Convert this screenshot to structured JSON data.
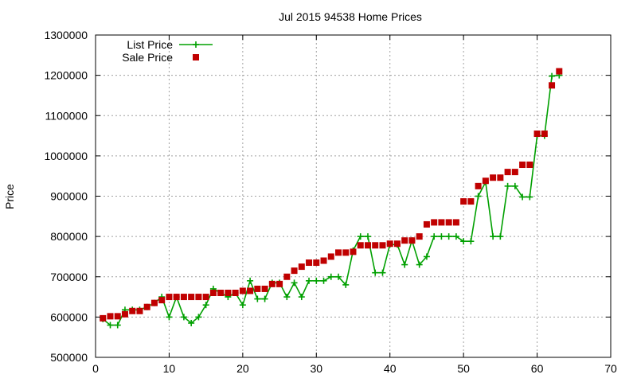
{
  "chart_data": {
    "type": "line",
    "title": "Jul 2015 94538 Home Prices",
    "xlabel": "",
    "ylabel": "Price",
    "xlim": [
      0,
      70
    ],
    "ylim": [
      500000,
      1300000
    ],
    "x_ticks": [
      0,
      10,
      20,
      30,
      40,
      50,
      60,
      70
    ],
    "y_ticks": [
      500000,
      600000,
      700000,
      800000,
      900000,
      1000000,
      1100000,
      1200000,
      1300000
    ],
    "grid": true,
    "legend_position": "top-left",
    "series": [
      {
        "name": "List Price",
        "style": "line-plus",
        "color": "#00a000",
        "points": [
          [
            1,
            595000
          ],
          [
            2,
            580000
          ],
          [
            3,
            580000
          ],
          [
            4,
            618000
          ],
          [
            5,
            618000
          ],
          [
            6,
            618000
          ],
          [
            7,
            625000
          ],
          [
            8,
            635000
          ],
          [
            9,
            650000
          ],
          [
            10,
            600000
          ],
          [
            11,
            650000
          ],
          [
            12,
            600000
          ],
          [
            13,
            585000
          ],
          [
            14,
            600000
          ],
          [
            15,
            630000
          ],
          [
            16,
            670000
          ],
          [
            17,
            660000
          ],
          [
            18,
            650000
          ],
          [
            19,
            660000
          ],
          [
            20,
            630000
          ],
          [
            21,
            690000
          ],
          [
            22,
            645000
          ],
          [
            23,
            645000
          ],
          [
            24,
            685000
          ],
          [
            25,
            685000
          ],
          [
            26,
            650000
          ],
          [
            27,
            685000
          ],
          [
            28,
            650000
          ],
          [
            29,
            690000
          ],
          [
            30,
            690000
          ],
          [
            31,
            690000
          ],
          [
            32,
            700000
          ],
          [
            33,
            700000
          ],
          [
            34,
            680000
          ],
          [
            35,
            765000
          ],
          [
            36,
            800000
          ],
          [
            37,
            800000
          ],
          [
            38,
            710000
          ],
          [
            39,
            710000
          ],
          [
            40,
            780000
          ],
          [
            41,
            780000
          ],
          [
            42,
            730000
          ],
          [
            43,
            790000
          ],
          [
            44,
            730000
          ],
          [
            45,
            750000
          ],
          [
            46,
            800000
          ],
          [
            47,
            800000
          ],
          [
            48,
            800000
          ],
          [
            49,
            800000
          ],
          [
            50,
            788000
          ],
          [
            51,
            788000
          ],
          [
            52,
            900000
          ],
          [
            53,
            935000
          ],
          [
            54,
            800000
          ],
          [
            55,
            800000
          ],
          [
            56,
            925000
          ],
          [
            57,
            925000
          ],
          [
            58,
            898000
          ],
          [
            59,
            898000
          ],
          [
            60,
            1050000
          ],
          [
            61,
            1050000
          ],
          [
            62,
            1198000
          ],
          [
            63,
            1200000
          ]
        ]
      },
      {
        "name": "Sale Price",
        "style": "square",
        "color": "#c00000",
        "points": [
          [
            1,
            597000
          ],
          [
            2,
            602000
          ],
          [
            3,
            602000
          ],
          [
            4,
            607000
          ],
          [
            5,
            615000
          ],
          [
            6,
            615000
          ],
          [
            7,
            625000
          ],
          [
            8,
            635000
          ],
          [
            9,
            642000
          ],
          [
            10,
            650000
          ],
          [
            11,
            650000
          ],
          [
            12,
            650000
          ],
          [
            13,
            650000
          ],
          [
            14,
            650000
          ],
          [
            15,
            650000
          ],
          [
            16,
            660000
          ],
          [
            17,
            660000
          ],
          [
            18,
            660000
          ],
          [
            19,
            660000
          ],
          [
            20,
            665000
          ],
          [
            21,
            665000
          ],
          [
            22,
            670000
          ],
          [
            23,
            670000
          ],
          [
            24,
            682000
          ],
          [
            25,
            682000
          ],
          [
            26,
            700000
          ],
          [
            27,
            715000
          ],
          [
            28,
            725000
          ],
          [
            29,
            735000
          ],
          [
            30,
            735000
          ],
          [
            31,
            740000
          ],
          [
            32,
            750000
          ],
          [
            33,
            760000
          ],
          [
            34,
            760000
          ],
          [
            35,
            762000
          ],
          [
            36,
            778000
          ],
          [
            37,
            778000
          ],
          [
            38,
            778000
          ],
          [
            39,
            778000
          ],
          [
            40,
            782000
          ],
          [
            41,
            782000
          ],
          [
            42,
            790000
          ],
          [
            43,
            790000
          ],
          [
            44,
            800000
          ],
          [
            45,
            830000
          ],
          [
            46,
            835000
          ],
          [
            47,
            835000
          ],
          [
            48,
            835000
          ],
          [
            49,
            835000
          ],
          [
            50,
            887000
          ],
          [
            51,
            887000
          ],
          [
            52,
            925000
          ],
          [
            53,
            938000
          ],
          [
            54,
            946000
          ],
          [
            55,
            946000
          ],
          [
            56,
            960000
          ],
          [
            57,
            960000
          ],
          [
            58,
            978000
          ],
          [
            59,
            978000
          ],
          [
            60,
            1055000
          ],
          [
            61,
            1055000
          ],
          [
            62,
            1175000
          ],
          [
            63,
            1210000
          ]
        ]
      }
    ]
  }
}
